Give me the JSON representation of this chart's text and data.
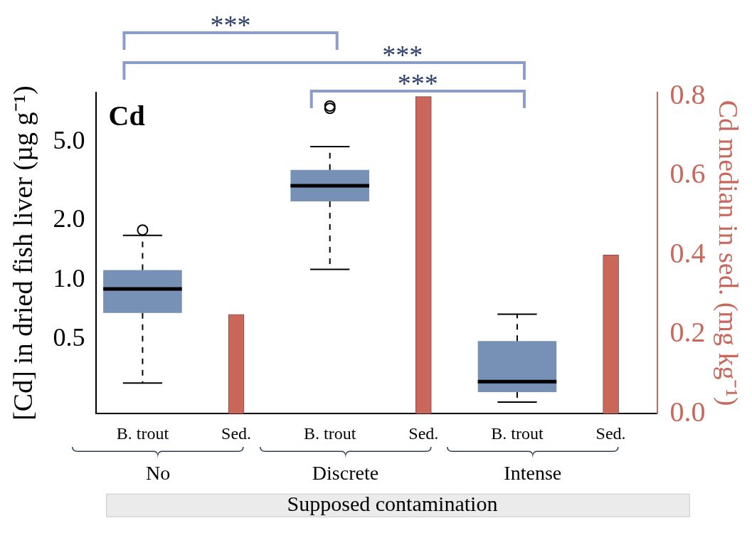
{
  "chart_data": {
    "type": "box",
    "title": "Cd",
    "xlabel": "Supposed contamination",
    "ylabel": "[Cd] in dried fish liver (µg g⁻¹)",
    "y2label": "Cd median in sed. (mg kg⁻¹)",
    "categories": [
      "B. trout",
      "Sed.",
      "B. trout",
      "Sed.",
      "B. trout",
      "Sed."
    ],
    "series": [
      {
        "color": "#7690b6",
        "boxes": [
          {
            "low": 0.3,
            "q1": 0.68,
            "median": 0.9,
            "q3": 1.12,
            "high": 1.68,
            "outliers": [
              1.79
            ]
          },
          null,
          {
            "low": 1.13,
            "q1": 2.5,
            "median": 3.0,
            "q3": 3.61,
            "high": 4.73,
            "outliers": [
              7.4,
              7.6
            ]
          },
          null,
          {
            "low": 0.24,
            "q1": 0.27,
            "median": 0.305,
            "q3": 0.49,
            "high": 0.67
          },
          null
        ]
      },
      {
        "type": "bar",
        "axis": "y2",
        "color": "#c8675a",
        "values": [
          null,
          0.25,
          null,
          0.8,
          null,
          0.4
        ]
      }
    ],
    "log": "y",
    "ylim": [
      0.21,
      8.9
    ],
    "yticks": [
      {
        "value": 0.5,
        "label": "0.5"
      },
      {
        "value": 1,
        "label": "1.0"
      },
      {
        "value": 2,
        "label": "2.0"
      },
      {
        "value": 5,
        "label": "5.0"
      }
    ],
    "y2lim": [
      0,
      0.81
    ],
    "y2ticks": [
      {
        "value": 0,
        "label": "0.0"
      },
      {
        "value": 0.2,
        "label": "0.2"
      },
      {
        "value": 0.4,
        "label": "0.4"
      },
      {
        "value": 0.6,
        "label": "0.6"
      },
      {
        "value": 0.8,
        "label": "0.8"
      }
    ],
    "annotations": [
      "***",
      "***",
      "***",
      "No",
      "Discrete",
      "Intense"
    ],
    "grid": false,
    "legend": false
  }
}
